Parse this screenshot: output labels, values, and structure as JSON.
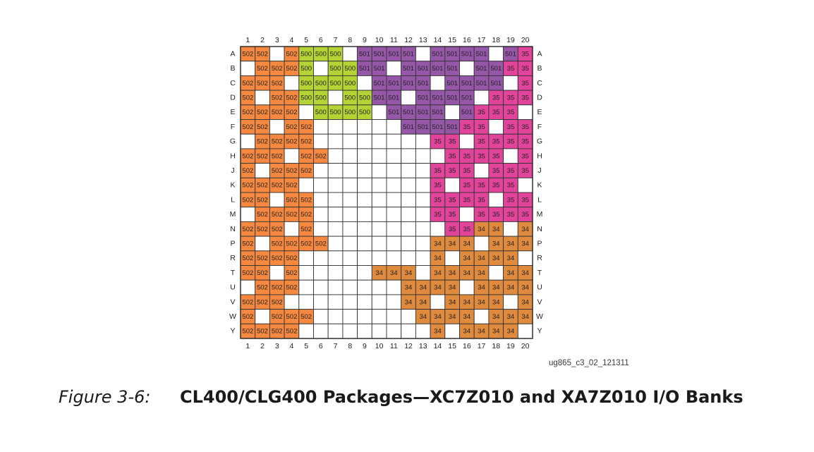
{
  "figure_id": "ug865_c3_02_121311",
  "caption": {
    "number": "Figure 3-6:",
    "title": "CL400/CLG400 Packages—XC7Z010 and XA7Z010 I/O Banks"
  },
  "columns": [
    "1",
    "2",
    "3",
    "4",
    "5",
    "6",
    "7",
    "8",
    "9",
    "10",
    "11",
    "12",
    "13",
    "14",
    "15",
    "16",
    "17",
    "18",
    "19",
    "20"
  ],
  "rows": [
    "A",
    "B",
    "C",
    "D",
    "E",
    "F",
    "G",
    "H",
    "J",
    "K",
    "L",
    "M",
    "N",
    "P",
    "R",
    "T",
    "U",
    "V",
    "W",
    "Y"
  ],
  "bank_colors": {
    "502": "#f6893f",
    "500": "#b5d334",
    "501": "#9657a9",
    "35": "#e2449b",
    "34": "#e08a3e"
  },
  "grid": [
    [
      "502",
      "502",
      "",
      "502",
      "500",
      "500",
      "500",
      "",
      "501",
      "501",
      "501",
      "501",
      "",
      "501",
      "501",
      "501",
      "501",
      "",
      "501",
      "35"
    ],
    [
      "",
      "502",
      "502",
      "502",
      "500",
      "",
      "500",
      "500",
      "501",
      "501",
      "",
      "501",
      "501",
      "501",
      "501",
      "",
      "501",
      "501",
      "35",
      "35"
    ],
    [
      "502",
      "502",
      "502",
      "",
      "500",
      "500",
      "500",
      "500",
      "",
      "501",
      "501",
      "501",
      "501",
      "",
      "501",
      "501",
      "501",
      "501",
      "",
      "35"
    ],
    [
      "502",
      "",
      "502",
      "502",
      "500",
      "500",
      "",
      "500",
      "500",
      "501",
      "501",
      "",
      "501",
      "501",
      "501",
      "501",
      "",
      "35",
      "35",
      "35"
    ],
    [
      "502",
      "502",
      "502",
      "502",
      "",
      "500",
      "500",
      "500",
      "500",
      "",
      "501",
      "501",
      "501",
      "501",
      "",
      "501",
      "35",
      "35",
      "35",
      ""
    ],
    [
      "502",
      "502",
      "",
      "502",
      "502",
      "",
      "",
      "",
      "",
      "",
      "",
      "501",
      "501",
      "501",
      "501",
      "35",
      "35",
      "",
      "35",
      "35"
    ],
    [
      "",
      "502",
      "502",
      "502",
      "502",
      "",
      "",
      "",
      "",
      "",
      "",
      "",
      "",
      "35",
      "35",
      "",
      "35",
      "35",
      "35",
      "35"
    ],
    [
      "502",
      "502",
      "502",
      "",
      "502",
      "502",
      "",
      "",
      "",
      "",
      "",
      "",
      "",
      "",
      "35",
      "35",
      "35",
      "35",
      "",
      "35"
    ],
    [
      "502",
      "",
      "502",
      "502",
      "502",
      "",
      "",
      "",
      "",
      "",
      "",
      "",
      "",
      "35",
      "35",
      "35",
      "",
      "35",
      "35",
      "35"
    ],
    [
      "502",
      "502",
      "502",
      "502",
      "",
      "",
      "",
      "",
      "",
      "",
      "",
      "",
      "",
      "35",
      "",
      "35",
      "35",
      "35",
      "35",
      ""
    ],
    [
      "502",
      "502",
      "",
      "502",
      "502",
      "",
      "",
      "",
      "",
      "",
      "",
      "",
      "",
      "35",
      "35",
      "35",
      "35",
      "",
      "35",
      "35"
    ],
    [
      "",
      "502",
      "502",
      "502",
      "502",
      "",
      "",
      "",
      "",
      "",
      "",
      "",
      "",
      "35",
      "35",
      "",
      "35",
      "35",
      "35",
      "35"
    ],
    [
      "502",
      "502",
      "502",
      "",
      "502",
      "",
      "",
      "",
      "",
      "",
      "",
      "",
      "",
      "",
      "35",
      "35",
      "34",
      "34",
      "",
      "34"
    ],
    [
      "502",
      "",
      "502",
      "502",
      "502",
      "502",
      "",
      "",
      "",
      "",
      "",
      "",
      "",
      "34",
      "34",
      "34",
      "",
      "34",
      "34",
      "34"
    ],
    [
      "502",
      "502",
      "502",
      "502",
      "",
      "",
      "",
      "",
      "",
      "",
      "",
      "",
      "",
      "34",
      "",
      "34",
      "34",
      "34",
      "34",
      ""
    ],
    [
      "502",
      "502",
      "",
      "502",
      "",
      "",
      "",
      "",
      "",
      "34",
      "34",
      "34",
      "",
      "34",
      "34",
      "34",
      "34",
      "",
      "34",
      "34"
    ],
    [
      "",
      "502",
      "502",
      "502",
      "",
      "",
      "",
      "",
      "",
      "",
      "",
      "34",
      "34",
      "34",
      "34",
      "",
      "34",
      "34",
      "34",
      "34"
    ],
    [
      "502",
      "502",
      "502",
      "",
      "",
      "",
      "",
      "",
      "",
      "",
      "",
      "34",
      "34",
      "",
      "34",
      "34",
      "34",
      "34",
      "",
      "34"
    ],
    [
      "502",
      "",
      "502",
      "502",
      "502",
      "",
      "",
      "",
      "",
      "",
      "",
      "",
      "34",
      "34",
      "34",
      "34",
      "",
      "34",
      "34",
      "34"
    ],
    [
      "502",
      "502",
      "502",
      "502",
      "",
      "",
      "",
      "",
      "",
      "",
      "",
      "",
      "",
      "34",
      "",
      "34",
      "34",
      "34",
      "34",
      ""
    ]
  ]
}
